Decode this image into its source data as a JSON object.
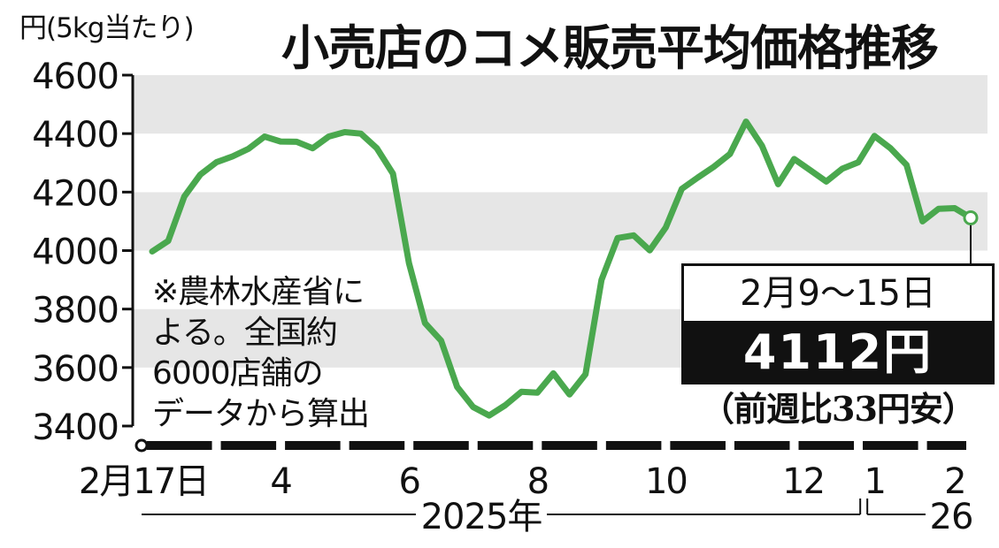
{
  "title": "小売店のコメ販売平均価格推移",
  "unit_label": "円(5kg当たり)",
  "note": "※農林水産省によるデータから算出",
  "note_lines": [
    "※農林水産省に",
    "よる。全国約",
    "6000店舗の",
    "データから算出"
  ],
  "callout": {
    "period": "2月9～15日",
    "price": "4112円",
    "change": "（前週比33円安）"
  },
  "year_labels": [
    "2025年",
    "26"
  ],
  "colors": {
    "line": "#4aa84e",
    "band": "#e6e6e6",
    "axis": "#111111"
  },
  "chart_data": {
    "type": "line",
    "title": "小売店のコメ販売平均価格推移",
    "ylabel": "円(5kg当たり)",
    "ylim": [
      3400,
      4600
    ],
    "yticks": [
      3400,
      3600,
      3800,
      4000,
      4200,
      4400,
      4600
    ],
    "ytick_labels": [
      "3400",
      "3600",
      "3800",
      "4000",
      "4200",
      "4400",
      "4600"
    ],
    "x_tick_labels": [
      "2月17日",
      "4",
      "6",
      "8",
      "10",
      "12",
      "1",
      "2"
    ],
    "x_tick_week_index": [
      0,
      8,
      16,
      24,
      32,
      41,
      45,
      50
    ],
    "grid": "alternating horizontal bands",
    "series": [
      {
        "values": [
          3997,
          4033,
          4185,
          4260,
          4302,
          4322,
          4348,
          4390,
          4373,
          4372,
          4350,
          4390,
          4405,
          4400,
          4350,
          4263,
          3957,
          3752,
          3692,
          3534,
          3465,
          3436,
          3471,
          3517,
          3514,
          3580,
          3508,
          3577,
          3900,
          4043,
          4052,
          4001,
          4079,
          4211,
          4250,
          4287,
          4330,
          4441,
          4358,
          4227,
          4313,
          4275,
          4236,
          4280,
          4302,
          4392,
          4350,
          4293,
          4100,
          4143,
          4145,
          4112
        ]
      }
    ],
    "latest": {
      "period": "2月9～15日",
      "value": 4112,
      "unit": "円",
      "change": "前週比33円安"
    }
  }
}
